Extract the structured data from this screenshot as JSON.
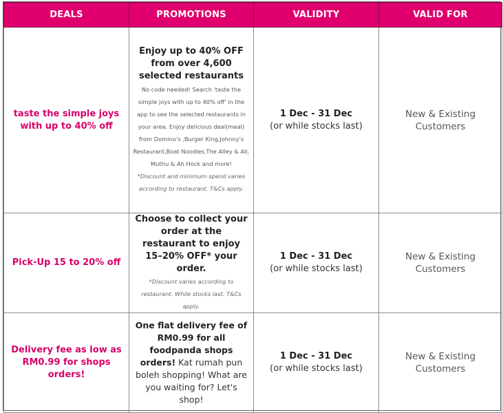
{
  "headers": {
    "deals": "DEALS",
    "promotions": "PROMOTIONS",
    "validity": "VALIDITY",
    "valid_for": "VALID FOR"
  },
  "rows": [
    {
      "deal": "taste the simple joys with up to 40% off",
      "promo_bold": "Enjoy up to 40% OFF from over 4,600 selected restaurants",
      "promo_detail": "No code needed! Search 'taste the simple joys with up to 40% off' in the app to see the selected restaurants in your area. Enjoy delicious deal(meal) from Domino's ,Burger King,Johnny's Restaurant,Boat Noodles,The Alley & Ali, Muthu & Ah Hock and more!",
      "promo_note": "*Discount and minimum spend varies according to restaurant. T&Cs apply.",
      "validity_date": "1 Dec - 31 Dec",
      "validity_note": "(or while stocks last)",
      "valid_for": "New & Existing Customers"
    },
    {
      "deal": "Pick-Up 15 to 20% off",
      "promo_bold": "Choose to collect your order at the restaurant to enjoy 15–20% OFF* your order.",
      "promo_note": "*Discount varies according to restaurant. While stocks last. T&Cs apply.",
      "validity_date": "1 Dec - 31 Dec",
      "validity_note": "(or while stocks last)",
      "valid_for": "New & Existing Customers"
    },
    {
      "deal": "Delivery fee as low as RM0.99 for shops orders!",
      "promo_bold": "One flat delivery fee of RM0.99 for all foodpanda shops orders!",
      "promo_rest": " Kat rumah pun boleh shopping! What are you waiting for? Let's shop!",
      "validity_date": "1 Dec - 31 Dec",
      "validity_note": "(or while stocks last)",
      "valid_for": "New & Existing Customers"
    }
  ],
  "colors": {
    "header_bg": "#e0006d",
    "deal_text": "#d6006a"
  }
}
